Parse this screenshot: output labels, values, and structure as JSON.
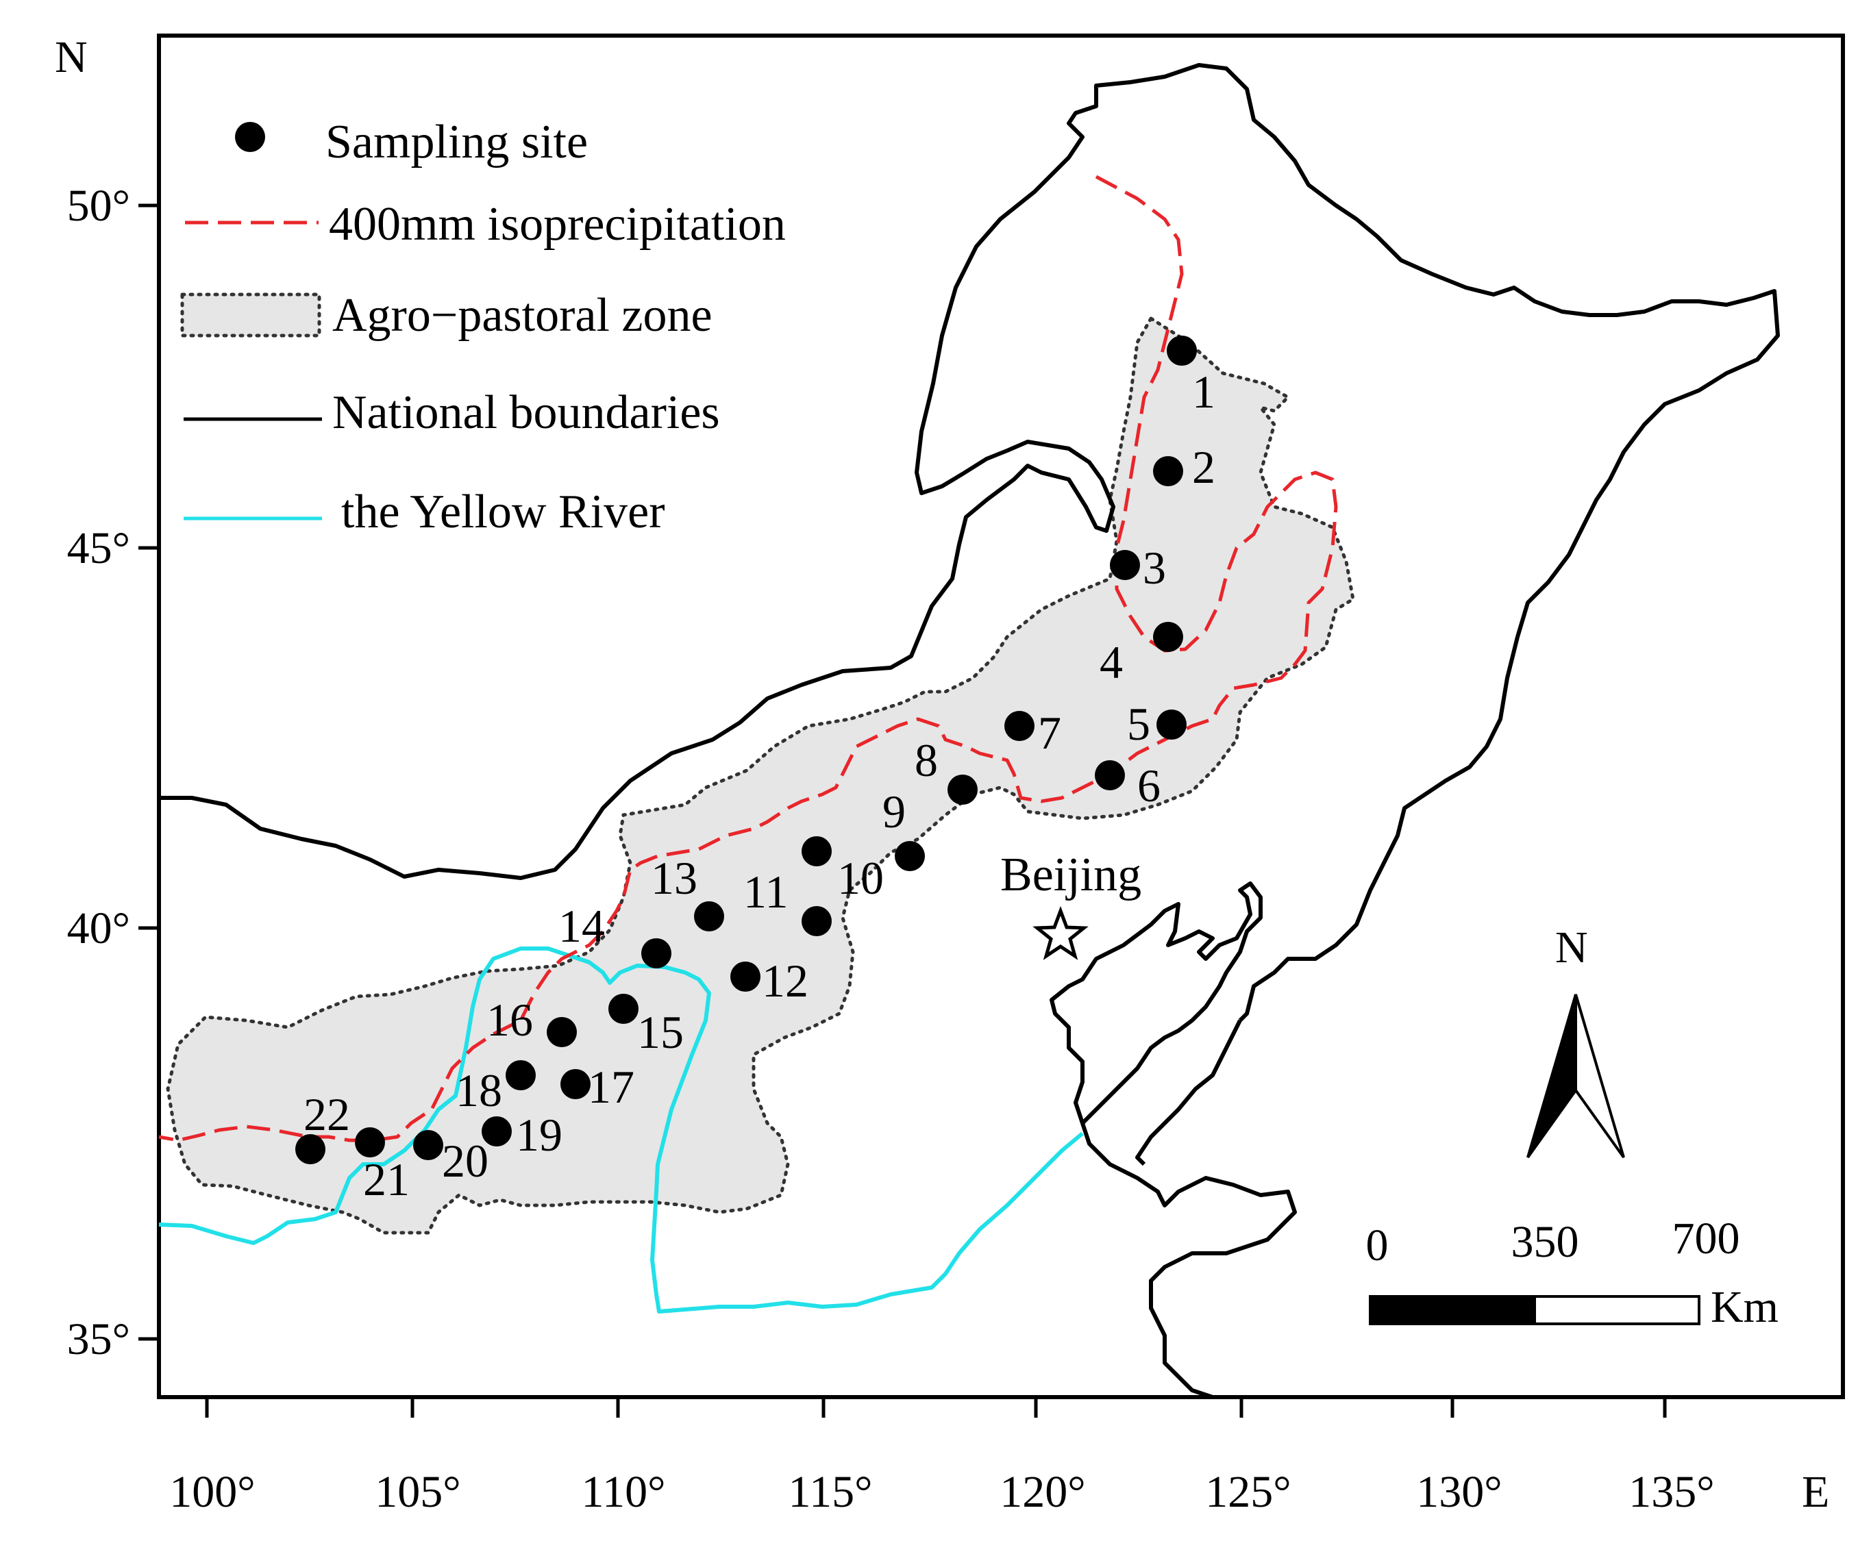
{
  "axes": {
    "north_label": "N",
    "east_label": "E",
    "latitude_ticks": [
      "50°",
      "45°",
      "40°",
      "35°"
    ],
    "longitude_ticks": [
      "100°",
      "105°",
      "110°",
      "115°",
      "120°",
      "125°",
      "130°",
      "135°"
    ]
  },
  "legend": {
    "items": [
      {
        "label": "Sampling site",
        "symbol": "black-dot"
      },
      {
        "label": "400mm isoprecipitation",
        "symbol": "red-dashed-line"
      },
      {
        "label": "Agro−pastoral zone",
        "symbol": "gray-dotted-box"
      },
      {
        "label": "National boundaries",
        "symbol": "black-line"
      },
      {
        "label": "the Yellow River",
        "symbol": "cyan-line"
      }
    ]
  },
  "sites": [
    "1",
    "2",
    "3",
    "4",
    "5",
    "6",
    "7",
    "8",
    "9",
    "10",
    "11",
    "12",
    "13",
    "14",
    "15",
    "16",
    "17",
    "18",
    "19",
    "20",
    "21",
    "22"
  ],
  "city": {
    "label": "Beijing",
    "symbol": "star"
  },
  "north_arrow": {
    "label": "N"
  },
  "scale_bar": {
    "ticks": [
      "0",
      "350",
      "700"
    ],
    "unit": "Km"
  },
  "colors": {
    "isoprecipitation": "#e8262b",
    "yellow_river": "#22e0e8",
    "zone_fill": "#e6e6e6",
    "boundary": "#000000",
    "site": "#000000"
  }
}
